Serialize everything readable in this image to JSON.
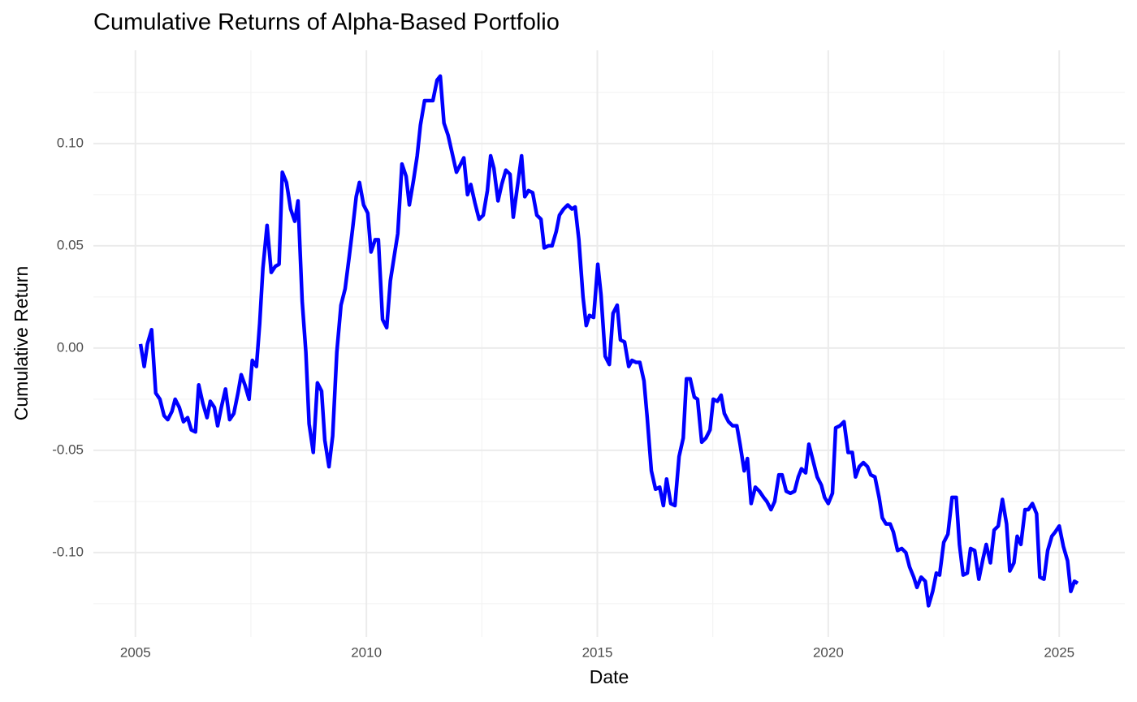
{
  "chart_data": {
    "type": "line",
    "title": "Cumulative Returns of Alpha-Based Portfolio",
    "x_label": "Date",
    "y_label": "Cumulative Return",
    "x": [
      2005.11,
      2005.19,
      2005.26,
      2005.35,
      2005.44,
      2005.53,
      2005.62,
      2005.7,
      2005.79,
      2005.86,
      2005.95,
      2006.04,
      2006.13,
      2006.21,
      2006.3,
      2006.37,
      2006.46,
      2006.55,
      2006.62,
      2006.71,
      2006.78,
      2006.86,
      2006.95,
      2007.04,
      2007.13,
      2007.22,
      2007.29,
      2007.37,
      2007.46,
      2007.53,
      2007.62,
      2007.69,
      2007.76,
      2007.85,
      2007.94,
      2008.03,
      2008.11,
      2008.18,
      2008.27,
      2008.36,
      2008.45,
      2008.52,
      2008.61,
      2008.69,
      2008.76,
      2008.85,
      2008.94,
      2009.03,
      2009.1,
      2009.19,
      2009.27,
      2009.36,
      2009.45,
      2009.54,
      2009.63,
      2009.7,
      2009.78,
      2009.85,
      2009.94,
      2010.03,
      2010.1,
      2010.19,
      2010.26,
      2010.35,
      2010.44,
      2010.52,
      2010.61,
      2010.68,
      2010.77,
      2010.86,
      2010.93,
      2011.02,
      2011.1,
      2011.17,
      2011.26,
      2011.37,
      2011.44,
      2011.53,
      2011.6,
      2011.68,
      2011.77,
      2011.86,
      2011.95,
      2012.02,
      2012.11,
      2012.19,
      2012.26,
      2012.35,
      2012.44,
      2012.53,
      2012.62,
      2012.69,
      2012.76,
      2012.85,
      2012.93,
      2013.02,
      2013.11,
      2013.18,
      2013.27,
      2013.36,
      2013.43,
      2013.51,
      2013.6,
      2013.69,
      2013.78,
      2013.85,
      2013.94,
      2014.02,
      2014.11,
      2014.18,
      2014.27,
      2014.36,
      2014.45,
      2014.52,
      2014.6,
      2014.69,
      2014.76,
      2014.83,
      2014.92,
      2015.01,
      2015.08,
      2015.17,
      2015.26,
      2015.34,
      2015.43,
      2015.5,
      2015.59,
      2015.68,
      2015.75,
      2015.84,
      2015.92,
      2016.01,
      2016.08,
      2016.17,
      2016.26,
      2016.35,
      2016.43,
      2016.5,
      2016.59,
      2016.68,
      2016.77,
      2016.86,
      2016.93,
      2017.01,
      2017.1,
      2017.17,
      2017.26,
      2017.35,
      2017.44,
      2017.51,
      2017.6,
      2017.68,
      2017.75,
      2017.84,
      2017.93,
      2018.02,
      2018.09,
      2018.18,
      2018.25,
      2018.33,
      2018.42,
      2018.51,
      2018.6,
      2018.67,
      2018.76,
      2018.84,
      2018.93,
      2019.0,
      2019.09,
      2019.18,
      2019.27,
      2019.35,
      2019.42,
      2019.51,
      2019.58,
      2019.67,
      2019.76,
      2019.85,
      2019.92,
      2020.0,
      2020.09,
      2020.16,
      2020.25,
      2020.34,
      2020.43,
      2020.52,
      2020.59,
      2020.67,
      2020.76,
      2020.85,
      2020.92,
      2021.01,
      2021.1,
      2021.17,
      2021.25,
      2021.34,
      2021.41,
      2021.5,
      2021.59,
      2021.68,
      2021.76,
      2021.85,
      2021.92,
      2022.01,
      2022.1,
      2022.17,
      2022.26,
      2022.34,
      2022.41,
      2022.5,
      2022.59,
      2022.68,
      2022.77,
      2022.84,
      2022.92,
      2023.01,
      2023.08,
      2023.17,
      2023.26,
      2023.35,
      2023.42,
      2023.51,
      2023.59,
      2023.68,
      2023.77,
      2023.86,
      2023.93,
      2024.02,
      2024.09,
      2024.17,
      2024.26,
      2024.33,
      2024.42,
      2024.51,
      2024.58,
      2024.67,
      2024.75,
      2024.84,
      2024.91,
      2025.0,
      2025.09,
      2025.18,
      2025.25,
      2025.33,
      2025.4
    ],
    "series": [
      {
        "color": "#0000ff",
        "values": [
          0.002,
          -0.009,
          0.002,
          0.009,
          -0.022,
          -0.025,
          -0.033,
          -0.035,
          -0.031,
          -0.025,
          -0.029,
          -0.036,
          -0.034,
          -0.04,
          -0.041,
          -0.018,
          -0.027,
          -0.034,
          -0.026,
          -0.029,
          -0.038,
          -0.029,
          -0.02,
          -0.035,
          -0.032,
          -0.022,
          -0.013,
          -0.018,
          -0.025,
          -0.006,
          -0.009,
          0.012,
          0.039,
          0.06,
          0.037,
          0.04,
          0.041,
          0.086,
          0.081,
          0.068,
          0.062,
          0.072,
          0.023,
          -0.002,
          -0.037,
          -0.051,
          -0.017,
          -0.021,
          -0.045,
          -0.058,
          -0.043,
          -0.002,
          0.021,
          0.029,
          0.045,
          0.058,
          0.074,
          0.081,
          0.07,
          0.066,
          0.047,
          0.053,
          0.053,
          0.014,
          0.01,
          0.033,
          0.046,
          0.056,
          0.09,
          0.084,
          0.07,
          0.082,
          0.094,
          0.109,
          0.121,
          0.121,
          0.121,
          0.131,
          0.133,
          0.11,
          0.104,
          0.095,
          0.086,
          0.089,
          0.093,
          0.075,
          0.08,
          0.071,
          0.063,
          0.065,
          0.077,
          0.094,
          0.088,
          0.072,
          0.08,
          0.087,
          0.085,
          0.064,
          0.079,
          0.094,
          0.074,
          0.077,
          0.076,
          0.065,
          0.063,
          0.049,
          0.05,
          0.05,
          0.057,
          0.065,
          0.068,
          0.07,
          0.068,
          0.069,
          0.053,
          0.025,
          0.011,
          0.016,
          0.015,
          0.041,
          0.026,
          -0.004,
          -0.008,
          0.017,
          0.021,
          0.004,
          0.003,
          -0.009,
          -0.006,
          -0.007,
          -0.007,
          -0.016,
          -0.034,
          -0.06,
          -0.069,
          -0.068,
          -0.077,
          -0.064,
          -0.076,
          -0.077,
          -0.053,
          -0.044,
          -0.015,
          -0.015,
          -0.024,
          -0.025,
          -0.046,
          -0.044,
          -0.04,
          -0.025,
          -0.026,
          -0.023,
          -0.032,
          -0.036,
          -0.038,
          -0.038,
          -0.047,
          -0.06,
          -0.054,
          -0.076,
          -0.068,
          -0.07,
          -0.073,
          -0.075,
          -0.079,
          -0.075,
          -0.062,
          -0.062,
          -0.07,
          -0.071,
          -0.07,
          -0.063,
          -0.059,
          -0.061,
          -0.047,
          -0.055,
          -0.063,
          -0.067,
          -0.073,
          -0.076,
          -0.071,
          -0.039,
          -0.038,
          -0.036,
          -0.051,
          -0.051,
          -0.063,
          -0.058,
          -0.056,
          -0.058,
          -0.062,
          -0.063,
          -0.073,
          -0.083,
          -0.086,
          -0.086,
          -0.09,
          -0.099,
          -0.098,
          -0.1,
          -0.107,
          -0.112,
          -0.117,
          -0.112,
          -0.114,
          -0.126,
          -0.119,
          -0.11,
          -0.111,
          -0.095,
          -0.091,
          -0.073,
          -0.073,
          -0.096,
          -0.111,
          -0.11,
          -0.098,
          -0.099,
          -0.113,
          -0.103,
          -0.096,
          -0.105,
          -0.089,
          -0.087,
          -0.074,
          -0.086,
          -0.109,
          -0.105,
          -0.092,
          -0.096,
          -0.079,
          -0.079,
          -0.076,
          -0.081,
          -0.112,
          -0.113,
          -0.099,
          -0.092,
          -0.09,
          -0.087,
          -0.097,
          -0.104,
          -0.119,
          -0.114,
          -0.115
        ]
      }
    ],
    "xlim": [
      2004.09,
      2026.42
    ],
    "xticks": [
      2005,
      2010,
      2015,
      2020,
      2025
    ],
    "ylim": [
      -0.1413,
      0.1456
    ],
    "yticks": [
      {
        "value": -0.1,
        "label": "-0.10"
      },
      -0.05,
      {
        "value": 0,
        "label": "0.00"
      },
      0.05,
      {
        "value": 0.1,
        "label": "0.10"
      }
    ],
    "grid": true,
    "minor_grid": true
  }
}
